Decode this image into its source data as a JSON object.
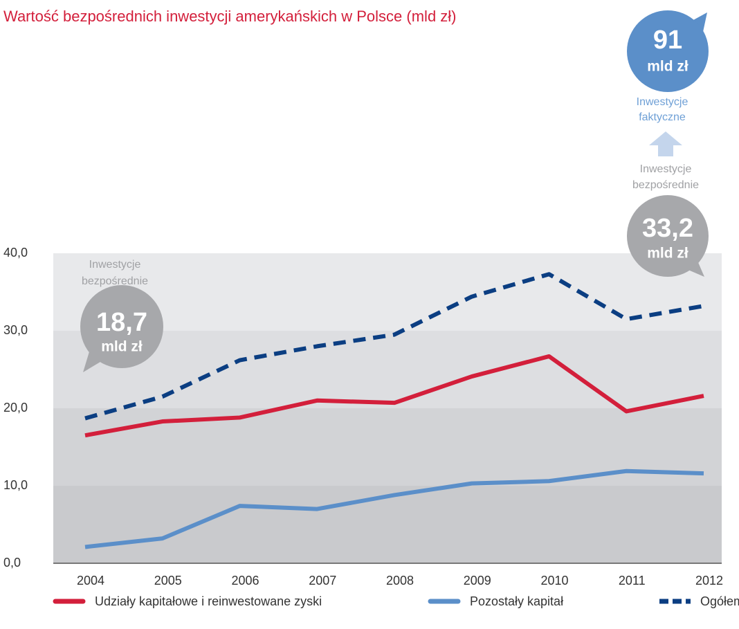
{
  "chart_data": {
    "type": "line",
    "title": "Wartość bezpośrednich inwestycji amerykańskich w Polsce (mld zł)",
    "categories": [
      "2004",
      "2005",
      "2006",
      "2007",
      "2008",
      "2009",
      "2010",
      "2011",
      "2012"
    ],
    "series": [
      {
        "name": "Udziały kapitałowe i reinwestowane zyski",
        "color": "#d31f3b",
        "dashed": false,
        "values": [
          16.5,
          18.3,
          18.8,
          21.0,
          20.7,
          24.1,
          26.7,
          19.6,
          21.6
        ]
      },
      {
        "name": "Pozostały kapitał",
        "color": "#5b8fc9",
        "dashed": false,
        "values": [
          2.1,
          3.2,
          7.4,
          7.0,
          8.8,
          10.3,
          10.6,
          11.9,
          11.6
        ]
      },
      {
        "name": "Ogółem",
        "color": "#0b3e82",
        "dashed": true,
        "values": [
          18.7,
          21.5,
          26.2,
          28.0,
          29.5,
          34.4,
          37.3,
          31.5,
          33.2
        ]
      }
    ],
    "ylim": [
      0,
      40
    ],
    "yticks": [
      {
        "value": 0,
        "label": "0,0"
      },
      {
        "value": 10,
        "label": "10,0"
      },
      {
        "value": 20,
        "label": "20,0"
      },
      {
        "value": 30,
        "label": "30,0"
      },
      {
        "value": 40,
        "label": "40,0"
      }
    ],
    "band_colors": [
      "#c9cacd",
      "#d2d3d6",
      "#dddee1",
      "#e8e9eb"
    ],
    "annotations": [
      {
        "label": [
          "Inwestycje",
          "bezpośrednie"
        ],
        "value": "18,7",
        "unit": "mld zł"
      },
      {
        "label": [
          "Inwestycje",
          "bezpośrednie"
        ],
        "value": "33,2",
        "unit": "mld zł"
      },
      {
        "label": [
          "Inwestycje",
          "faktyczne"
        ],
        "value": "91",
        "unit": "mld zł"
      }
    ]
  }
}
